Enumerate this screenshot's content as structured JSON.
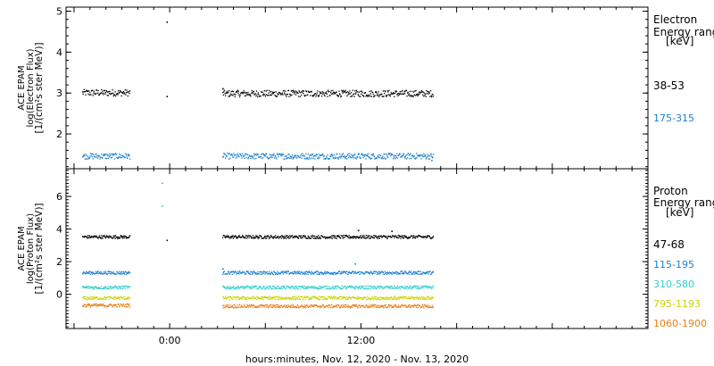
{
  "chart_data": [
    {
      "type": "scatter",
      "panel": "electron",
      "ylabel_lines": [
        "ACE EPAM",
        "log(Electron Flux)",
        "[1/(cm²s ster MeV)]"
      ],
      "ylim": [
        1.15,
        5.1
      ],
      "yticks": [
        2,
        3,
        4,
        5
      ],
      "xlim": [
        -6.5,
        30
      ],
      "legend_title": [
        "Electron",
        "Energy range",
        "[keV]"
      ],
      "series": [
        {
          "name": "38-53",
          "color": "#000000",
          "segments": [
            {
              "x_start": -5.5,
              "x_end": -2.5,
              "y": 3.02
            },
            {
              "x_start": 3.3,
              "x_end": 16.5,
              "y": 3.0
            }
          ],
          "outliers": [
            {
              "x": -0.2,
              "y": 4.75
            },
            {
              "x": -0.2,
              "y": 2.93
            },
            {
              "x": 3.3,
              "y": 3.12
            }
          ]
        },
        {
          "name": "175-315",
          "color": "#1a7fd0",
          "segments": [
            {
              "x_start": -5.5,
              "x_end": -2.5,
              "y": 1.47
            },
            {
              "x_start": 3.3,
              "x_end": 16.5,
              "y": 1.47
            }
          ],
          "outliers": [
            {
              "x": 16.4,
              "y": 1.37
            }
          ]
        }
      ]
    },
    {
      "type": "scatter",
      "panel": "proton",
      "ylabel_lines": [
        "ACE EPAM",
        "log(Proton Flux)",
        "[1/(cm²s ster MeV)]"
      ],
      "ylim": [
        -2.1,
        7.7
      ],
      "yticks": [
        0,
        2,
        4,
        6
      ],
      "xlim": [
        -6.5,
        30
      ],
      "xticks": [
        0,
        12
      ],
      "xtick_labels": [
        "0:00",
        "12:00"
      ],
      "xlabel": "hours:minutes, Nov. 12, 2020 - Nov. 13, 2020",
      "legend_title": [
        "Proton",
        "Energy range",
        "[keV]"
      ],
      "series": [
        {
          "name": "47-68",
          "color": "#000000",
          "segments": [
            {
              "x_start": -5.5,
              "x_end": -2.5,
              "y": 3.55
            },
            {
              "x_start": 3.3,
              "x_end": 16.5,
              "y": 3.55
            }
          ],
          "outliers": [
            {
              "x": -0.2,
              "y": 3.35
            },
            {
              "x": 11.8,
              "y": 3.95
            },
            {
              "x": 13.9,
              "y": 3.9
            }
          ]
        },
        {
          "name": "115-195",
          "color": "#1a7fd0",
          "segments": [
            {
              "x_start": -5.5,
              "x_end": -2.5,
              "y": 1.35
            },
            {
              "x_start": 3.3,
              "x_end": 16.5,
              "y": 1.35
            }
          ],
          "outliers": [
            {
              "x": 3.3,
              "y": 1.6
            },
            {
              "x": 11.6,
              "y": 1.9
            }
          ]
        },
        {
          "name": "310-580",
          "color": "#33cccc",
          "segments": [
            {
              "x_start": -5.5,
              "x_end": -2.5,
              "y": 0.45
            },
            {
              "x_start": 3.3,
              "x_end": 16.5,
              "y": 0.45
            }
          ],
          "outliers": [
            {
              "x": -0.5,
              "y": 5.45
            }
          ]
        },
        {
          "name": "795-1193",
          "color": "#c8d400",
          "segments": [
            {
              "x_start": -5.5,
              "x_end": -2.5,
              "y": -0.2
            },
            {
              "x_start": 3.3,
              "x_end": 16.5,
              "y": -0.2
            }
          ],
          "outliers": []
        },
        {
          "name": "1060-1900",
          "color": "#e8801a",
          "segments": [
            {
              "x_start": -5.5,
              "x_end": -2.5,
              "y": -0.65
            },
            {
              "x_start": 3.3,
              "x_end": 16.5,
              "y": -0.7
            }
          ],
          "outliers": [
            {
              "x": -0.5,
              "y": 6.85
            }
          ]
        }
      ]
    }
  ]
}
